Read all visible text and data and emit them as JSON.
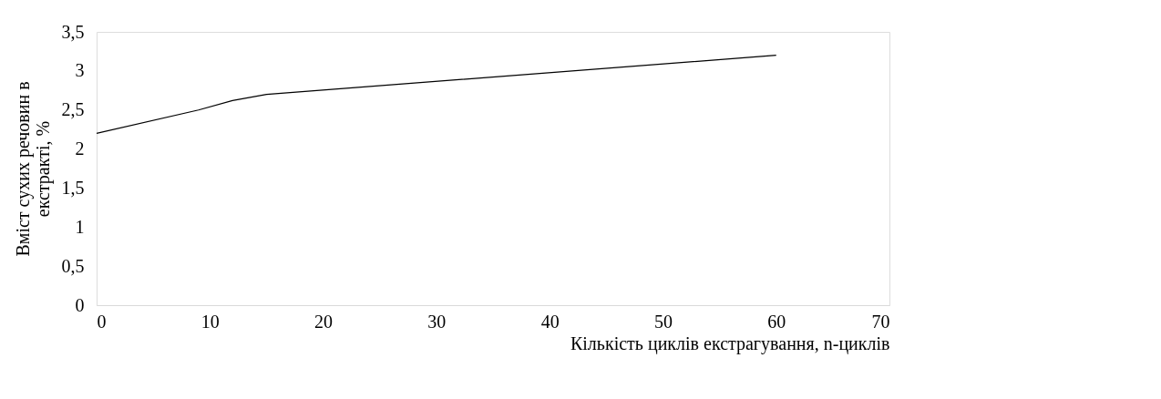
{
  "chart_data": {
    "type": "line",
    "xlabel": "Кількість циклів екстрагування, n-циклів",
    "ylabel": "Вміст сухих речовин в екстракті, %",
    "x": [
      0,
      9,
      12,
      15,
      60
    ],
    "series": [
      {
        "color": "#000000",
        "values": [
          2.2,
          2.5,
          2.62,
          2.7,
          3.2
        ]
      }
    ],
    "xlim": [
      0,
      70
    ],
    "xticks": [
      0,
      10,
      20,
      30,
      40,
      50,
      60,
      70
    ],
    "ylim": [
      0,
      3.5
    ],
    "yticks": [
      0,
      {
        "value": 0.5,
        "label": "0,5"
      },
      1,
      {
        "value": 1.5,
        "label": "1,5"
      },
      2,
      {
        "value": 2.5,
        "label": "2,5"
      },
      3,
      {
        "value": 3.5,
        "label": "3,5"
      }
    ],
    "grid": false,
    "marker": "none",
    "line_style": "solid"
  }
}
